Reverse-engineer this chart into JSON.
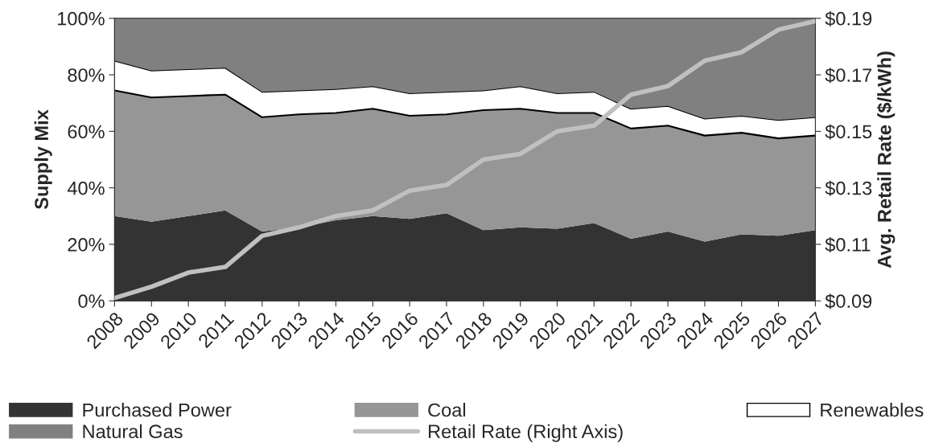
{
  "chart_data": {
    "type": "area",
    "stacked": true,
    "ylabel": "Supply Mix",
    "y2label": "Avg. Retail Rate ($/kWh)",
    "categories": [
      "2008",
      "2009",
      "2010",
      "2011",
      "2012",
      "2013",
      "2014",
      "2015",
      "2016",
      "2017",
      "2018",
      "2019",
      "2020",
      "2021",
      "2022",
      "2023",
      "2024",
      "2025",
      "2026",
      "2027"
    ],
    "series": [
      {
        "name": "Purchased Power",
        "color": "#333333",
        "values": [
          30,
          28,
          30,
          32,
          24.5,
          26,
          28.5,
          30,
          29,
          31,
          25,
          26,
          25.5,
          27.5,
          22,
          24.5,
          21,
          23.5,
          23,
          25
        ]
      },
      {
        "name": "Coal",
        "color": "#969696",
        "values": [
          44.5,
          44,
          42.5,
          41,
          40.5,
          40,
          38,
          38,
          36.5,
          35,
          42.5,
          42,
          41,
          39,
          39,
          37.5,
          37.5,
          36,
          34.5,
          33.5
        ]
      },
      {
        "name": "Renewables",
        "color": "#ffffff",
        "values": [
          10.5,
          9.5,
          9.5,
          9.5,
          9,
          8.5,
          8.5,
          8,
          8,
          8,
          7,
          8,
          7,
          7.5,
          7,
          7,
          6,
          6,
          6.5,
          6.5
        ]
      },
      {
        "name": "Natural Gas",
        "color": "#808080",
        "values": [
          15,
          18.5,
          18,
          17.5,
          26,
          25.5,
          25,
          24,
          26.5,
          26,
          25.5,
          24,
          26.5,
          26,
          32,
          31,
          35.5,
          34.5,
          36,
          35
        ]
      },
      {
        "name": "Retail Rate (Right Axis)",
        "type": "line",
        "axis": "y2",
        "color": "#c0c0c0",
        "values": [
          0.091,
          0.095,
          0.1,
          0.102,
          0.113,
          0.116,
          0.12,
          0.122,
          0.129,
          0.131,
          0.14,
          0.142,
          0.15,
          0.152,
          0.163,
          0.166,
          0.175,
          0.178,
          0.186,
          0.189
        ]
      }
    ],
    "ylim": [
      0,
      100
    ],
    "yticks": [
      {
        "value": 0,
        "label": "0%"
      },
      {
        "value": 20,
        "label": "20%"
      },
      {
        "value": 40,
        "label": "40%"
      },
      {
        "value": 60,
        "label": "60%"
      },
      {
        "value": 80,
        "label": "80%"
      },
      {
        "value": 100,
        "label": "100%"
      }
    ],
    "y2lim": [
      0.09,
      0.19
    ],
    "y2ticks": [
      {
        "value": 0.09,
        "label": "$0.09"
      },
      {
        "value": 0.11,
        "label": "$0.11"
      },
      {
        "value": 0.13,
        "label": "$0.13"
      },
      {
        "value": 0.15,
        "label": "$0.15"
      },
      {
        "value": 0.17,
        "label": "$0.17"
      },
      {
        "value": 0.19,
        "label": "$0.19"
      }
    ],
    "grid": false,
    "legend": "bottom",
    "marker": "none",
    "line_style": "solid"
  }
}
